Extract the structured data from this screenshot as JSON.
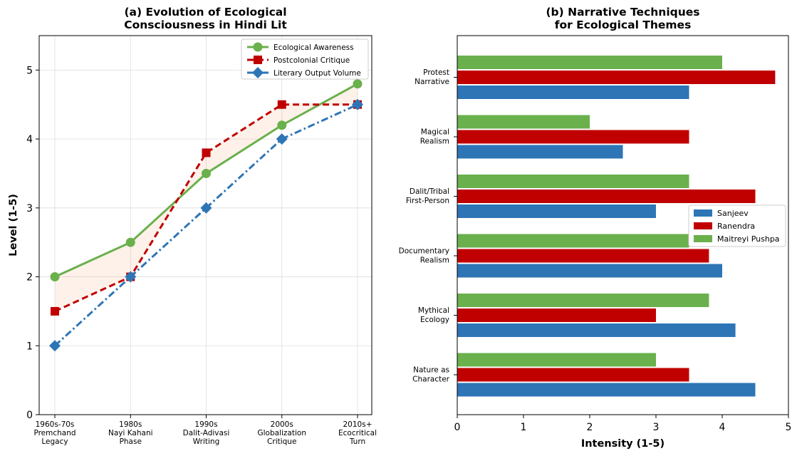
{
  "chart_data": [
    {
      "type": "line",
      "title": "(a) Evolution of Ecological\nConsciousness in Hindi Lit",
      "ylabel": "Level (1-5)",
      "xlabel": "",
      "ylim": [
        0,
        5.5
      ],
      "yticks": [
        0,
        1,
        2,
        3,
        4,
        5
      ],
      "grid": true,
      "legend_position": "top-right",
      "categories": [
        "1960s-70s\nPremchand\nLegacy",
        "1980s\nNayi Kahani\nPhase",
        "1990s\nDalit-Adivasi\nWriting",
        "2000s\nGlobalization\nCritique",
        "2010s+\nEcocritical\nTurn"
      ],
      "series": [
        {
          "name": "Ecological Awareness",
          "values": [
            2.0,
            2.5,
            3.5,
            4.2,
            4.8
          ],
          "color": "#6ab04c",
          "marker": "circle",
          "dash": "solid"
        },
        {
          "name": "Postcolonial Critique",
          "values": [
            1.5,
            2.0,
            3.8,
            4.5,
            4.5
          ],
          "color": "#c00000",
          "marker": "square",
          "dash": "dashed"
        },
        {
          "name": "Literary Output Volume",
          "values": [
            1.0,
            2.0,
            3.0,
            4.0,
            4.5
          ],
          "color": "#2e75b6",
          "marker": "diamond",
          "dash": "dashdot"
        }
      ],
      "fill_between": {
        "series": [
          0,
          1
        ],
        "color": "#f4b183"
      }
    },
    {
      "type": "bar",
      "orientation": "horizontal",
      "title": "(b) Narrative Techniques\nfor Ecological Themes",
      "xlabel": "Intensity (1-5)",
      "ylabel": "",
      "xlim": [
        0,
        5
      ],
      "xticks": [
        0,
        1,
        2,
        3,
        4,
        5
      ],
      "legend_position": "center-right",
      "categories": [
        "Nature as\nCharacter",
        "Mythical\nEcology",
        "Documentary\nRealism",
        "Dalit/Tribal\nFirst-Person",
        "Magical\nRealism",
        "Protest\nNarrative"
      ],
      "series": [
        {
          "name": "Sanjeev",
          "values": [
            4.5,
            4.2,
            4.0,
            3.0,
            2.5,
            3.5
          ],
          "color": "#2e75b6"
        },
        {
          "name": "Ranendra",
          "values": [
            3.5,
            3.0,
            3.8,
            4.5,
            3.5,
            4.8
          ],
          "color": "#c00000"
        },
        {
          "name": "Maitreyi Pushpa",
          "values": [
            3.0,
            3.8,
            3.5,
            3.5,
            2.0,
            4.0
          ],
          "color": "#6ab04c"
        }
      ]
    }
  ]
}
